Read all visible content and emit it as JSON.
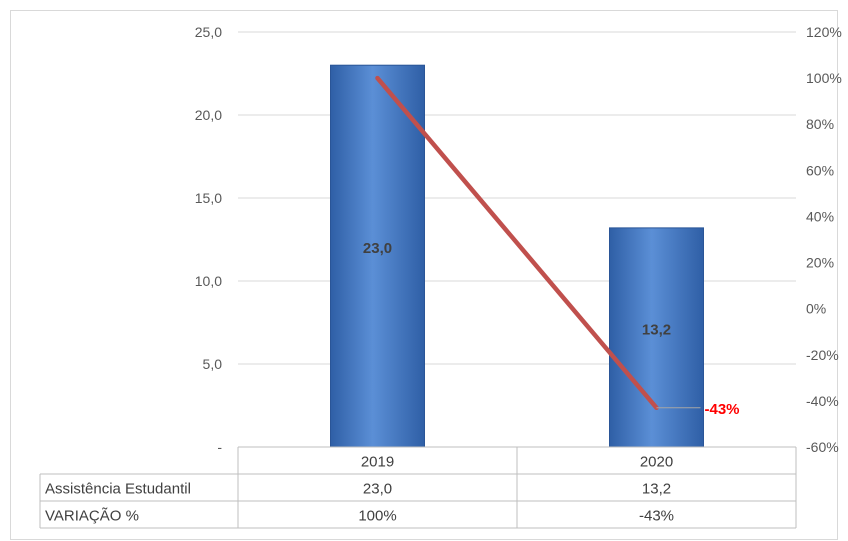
{
  "chart_data": {
    "type": "bar",
    "categories": [
      "2019",
      "2020"
    ],
    "series": [
      {
        "name": "Assistência Estudantil",
        "values": [
          23.0,
          13.2
        ],
        "labels": [
          "23,0",
          "13,2"
        ],
        "axis": "primary",
        "kind": "bar",
        "color": "#4a7cc4"
      },
      {
        "name": "VARIAÇÃO %",
        "values": [
          100,
          -43
        ],
        "labels": [
          "100%",
          "-43%"
        ],
        "axis": "secondary",
        "kind": "line",
        "color": "#c0504d"
      }
    ],
    "highlight_label": {
      "text": "-43%",
      "color": "#ff0000"
    },
    "y_left": {
      "ylim": [
        0,
        25
      ],
      "ticks": [
        "-",
        "5,0",
        "10,0",
        "15,0",
        "20,0",
        "25,0"
      ],
      "tick_values": [
        0,
        5,
        10,
        15,
        20,
        25
      ]
    },
    "y_right": {
      "ylim": [
        -60,
        120
      ],
      "ticks": [
        "-60%",
        "-40%",
        "-20%",
        "0%",
        "20%",
        "40%",
        "60%",
        "80%",
        "100%",
        "120%"
      ],
      "tick_values": [
        -60,
        -40,
        -20,
        0,
        20,
        40,
        60,
        80,
        100,
        120
      ]
    },
    "data_table": {
      "header": [
        "2019",
        "2020"
      ],
      "rows": [
        {
          "label": "Assistência Estudantil",
          "cells": [
            "23,0",
            "13,2"
          ]
        },
        {
          "label": "VARIAÇÃO %",
          "cells": [
            "100%",
            "-43%"
          ]
        }
      ]
    },
    "grid": true,
    "title": "",
    "xlabel": "",
    "ylabel": ""
  }
}
